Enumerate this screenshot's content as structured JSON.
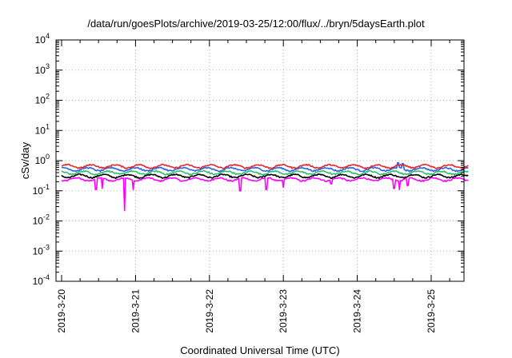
{
  "chart_data": {
    "type": "line",
    "title": "/data/run/goesPlots/archive/2019-03-25/12:00/flux/../bryn/5daysEarth.plot",
    "xlabel": "Coordinated Universal Time (UTC)",
    "ylabel": "cSv/day",
    "y_scale": "log",
    "ylim": [
      0.0001,
      10000
    ],
    "xlim": [
      "2019-03-20",
      "2019-03-25 12:00"
    ],
    "y_ticks": [
      {
        "base": "10",
        "exp": "-4"
      },
      {
        "base": "10",
        "exp": "-3"
      },
      {
        "base": "10",
        "exp": "-2"
      },
      {
        "base": "10",
        "exp": "-1"
      },
      {
        "base": "10",
        "exp": "0"
      },
      {
        "base": "10",
        "exp": "1"
      },
      {
        "base": "10",
        "exp": "2"
      },
      {
        "base": "10",
        "exp": "3"
      },
      {
        "base": "10",
        "exp": "4"
      }
    ],
    "x_ticks": [
      "2019-3-20",
      "2019-3-21",
      "2019-3-22",
      "2019-3-23",
      "2019-3-24",
      "2019-3-25"
    ],
    "grid": true,
    "legend": "none",
    "series": [
      {
        "color": "#e8262b",
        "level": 0.65,
        "dips": []
      },
      {
        "color": "#2a64e6",
        "level": 0.52,
        "dips": [
          {
            "day": 4.55,
            "value": 0.85
          },
          {
            "day": 4.62,
            "value": 0.8
          }
        ]
      },
      {
        "color": "#2bbf6b",
        "level": 0.4,
        "dips": []
      },
      {
        "color": "#000000",
        "level": 0.31,
        "dips": []
      },
      {
        "color": "#ff00ff",
        "level": 0.24,
        "dips": [
          {
            "day": 0.47,
            "value": 0.11
          },
          {
            "day": 0.55,
            "value": 0.12
          },
          {
            "day": 0.85,
            "value": 0.022
          },
          {
            "day": 0.97,
            "value": 0.11
          },
          {
            "day": 2.42,
            "value": 0.1
          },
          {
            "day": 2.77,
            "value": 0.11
          },
          {
            "day": 3.0,
            "value": 0.13
          },
          {
            "day": 3.65,
            "value": 0.17
          },
          {
            "day": 4.5,
            "value": 0.12
          },
          {
            "day": 4.57,
            "value": 0.11
          },
          {
            "day": 4.68,
            "value": 0.15
          }
        ]
      }
    ]
  }
}
